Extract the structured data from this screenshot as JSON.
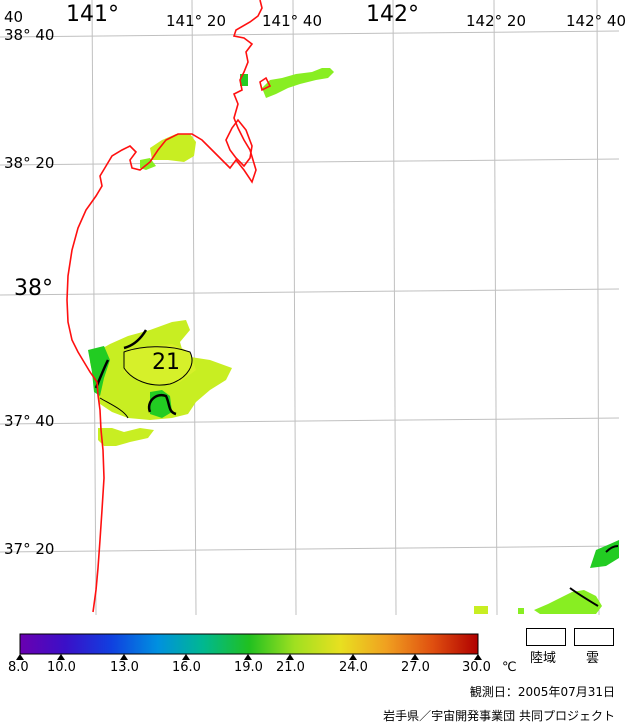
{
  "map": {
    "lon_labels": [
      "141°",
      "141° 20",
      "141° 40",
      "142°",
      "142° 20",
      "142° 40"
    ],
    "lat_labels": [
      "38° 40",
      "38° 20",
      "38°",
      "37° 40",
      "37° 20"
    ],
    "corner_label": "40",
    "contour_label": "21",
    "colors": {
      "coast": "#ff1010",
      "grid": "#c0c0c0",
      "sst_low": "#22cc22",
      "sst_mid": "#88ee22",
      "sst_high": "#c8ee22"
    }
  },
  "colorbar": {
    "ticks": [
      "8.0",
      "10.0",
      "13.0",
      "16.0",
      "19.0",
      "21.0",
      "24.0",
      "27.0",
      "30.0"
    ],
    "unit": "℃",
    "min": 8.0,
    "max": 30.0,
    "colors": [
      "#6a00b0",
      "#2030d0",
      "#0080e0",
      "#00b8a0",
      "#20c020",
      "#90e020",
      "#e0e020",
      "#f0a020",
      "#e05010",
      "#b00000"
    ]
  },
  "legend": {
    "land_label": "陸域",
    "cloud_label": "雲"
  },
  "observation_date": "観測日：2005年07月31日",
  "credit": "岩手県／宇宙開発事業団 共同プロジェクト"
}
